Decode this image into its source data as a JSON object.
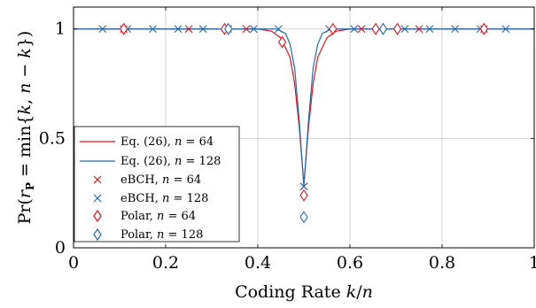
{
  "chart_data": {
    "type": "line",
    "xlabel": "Coding Rate k/n",
    "ylabel": "Pr(r_P = min{k, n − k})",
    "xlim": [
      0,
      1
    ],
    "ylim": [
      0,
      1.1
    ],
    "x_ticks": [
      0,
      0.2,
      0.4,
      0.6,
      0.8,
      1
    ],
    "x_tick_labels": [
      "0",
      "0.2",
      "0.4",
      "0.6",
      "0.8",
      "1"
    ],
    "y_ticks": [
      0,
      0.5,
      1
    ],
    "y_tick_labels": [
      "0",
      "0.5",
      "1"
    ],
    "grid": true,
    "legend_position": "bottom-left",
    "series": [
      {
        "name": "Eq. (26), n = 64",
        "kind": "line",
        "color": "#e8101b",
        "x": [
          0,
          0.4,
          0.43,
          0.45,
          0.47,
          0.48,
          0.49,
          0.5,
          0.51,
          0.52,
          0.53,
          0.55,
          0.57,
          0.6,
          1.0
        ],
        "y": [
          1,
          1,
          0.99,
          0.96,
          0.87,
          0.75,
          0.55,
          0.29,
          0.55,
          0.75,
          0.87,
          0.96,
          0.99,
          1,
          1
        ]
      },
      {
        "name": "Eq. (26), n = 128",
        "kind": "line",
        "color": "#1f6bb5",
        "x": [
          0,
          0.44,
          0.46,
          0.47,
          0.48,
          0.49,
          0.5,
          0.51,
          0.52,
          0.53,
          0.54,
          0.56,
          1.0
        ],
        "y": [
          1,
          1,
          0.98,
          0.93,
          0.82,
          0.58,
          0.28,
          0.58,
          0.82,
          0.93,
          0.98,
          1,
          1
        ]
      },
      {
        "name": "eBCH, n = 64",
        "kind": "marker",
        "marker": "x",
        "color": "#e8101b",
        "x": [
          0.109,
          0.25,
          0.375,
          0.5,
          0.625,
          0.75,
          0.891
        ],
        "y": [
          1,
          1,
          1,
          0.28,
          1,
          1,
          1
        ]
      },
      {
        "name": "eBCH, n = 128",
        "kind": "marker",
        "marker": "x",
        "color": "#1f6bb5",
        "x": [
          0.063,
          0.117,
          0.172,
          0.227,
          0.281,
          0.336,
          0.391,
          0.445,
          0.5,
          0.555,
          0.609,
          0.664,
          0.719,
          0.773,
          0.828,
          0.883,
          0.938
        ],
        "y": [
          1,
          1,
          1,
          1,
          1,
          1,
          1,
          1,
          0.28,
          1,
          1,
          1,
          1,
          1,
          1,
          1,
          1
        ]
      },
      {
        "name": "Polar, n = 64",
        "kind": "marker",
        "marker": "diamond",
        "color": "#e8101b",
        "x": [
          0.109,
          0.328,
          0.453,
          0.5,
          0.563,
          0.656,
          0.703,
          0.891
        ],
        "y": [
          1,
          1,
          0.94,
          0.24,
          1,
          1,
          1,
          1
        ]
      },
      {
        "name": "Polar, n = 128",
        "kind": "marker",
        "marker": "diamond",
        "color": "#1f6bb5",
        "x": [
          0.336,
          0.5,
          0.672
        ],
        "y": [
          1,
          0.14,
          1
        ]
      }
    ]
  }
}
